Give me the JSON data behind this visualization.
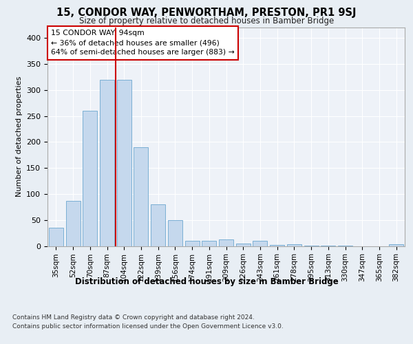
{
  "title": "15, CONDOR WAY, PENWORTHAM, PRESTON, PR1 9SJ",
  "subtitle": "Size of property relative to detached houses in Bamber Bridge",
  "xlabel": "Distribution of detached houses by size in Bamber Bridge",
  "ylabel": "Number of detached properties",
  "categories": [
    "35sqm",
    "52sqm",
    "70sqm",
    "87sqm",
    "104sqm",
    "122sqm",
    "139sqm",
    "156sqm",
    "174sqm",
    "191sqm",
    "209sqm",
    "226sqm",
    "243sqm",
    "261sqm",
    "278sqm",
    "295sqm",
    "313sqm",
    "330sqm",
    "347sqm",
    "365sqm",
    "382sqm"
  ],
  "values": [
    35,
    87,
    260,
    320,
    320,
    190,
    80,
    50,
    10,
    10,
    13,
    5,
    10,
    2,
    3,
    1,
    1,
    1,
    0,
    0,
    3
  ],
  "bar_color": "#c5d8ed",
  "bar_edge_color": "#7aafd4",
  "property_label": "15 CONDOR WAY: 94sqm",
  "annotation_line1": "← 36% of detached houses are smaller (496)",
  "annotation_line2": "64% of semi-detached houses are larger (883) →",
  "annotation_box_color": "#ffffff",
  "annotation_box_edge": "#cc0000",
  "red_line_color": "#cc0000",
  "ylim": [
    0,
    420
  ],
  "yticks": [
    0,
    50,
    100,
    150,
    200,
    250,
    300,
    350,
    400
  ],
  "background_color": "#e8eef4",
  "plot_background_color": "#eef2f8",
  "footer_line1": "Contains HM Land Registry data © Crown copyright and database right 2024.",
  "footer_line2": "Contains public sector information licensed under the Open Government Licence v3.0."
}
